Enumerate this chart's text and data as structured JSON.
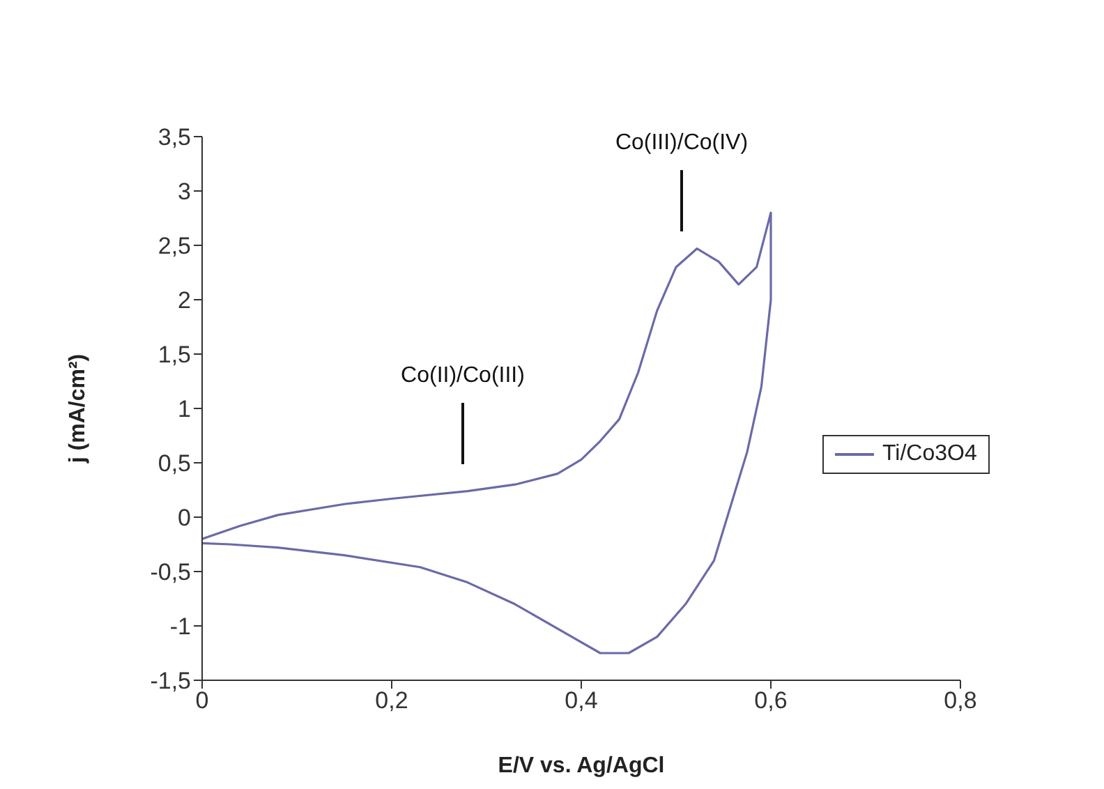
{
  "chart_data": {
    "type": "line",
    "xlabel": "E/V vs. Ag/AgCl",
    "ylabel": "j (mA/cm²)",
    "xlim": [
      0,
      0.8
    ],
    "xticks": [
      0,
      {
        "value": 0.2,
        "label": "0,2"
      },
      {
        "value": 0.4,
        "label": "0,4"
      },
      {
        "value": 0.6,
        "label": "0,6"
      },
      {
        "value": 0.8,
        "label": "0,8"
      }
    ],
    "ylim": [
      -1.5,
      3.5
    ],
    "yticks": [
      {
        "value": -1.5,
        "label": "-1,5"
      },
      -1,
      {
        "value": -0.5,
        "label": "-0,5"
      },
      0,
      {
        "value": 0.5,
        "label": "0,5"
      },
      1,
      {
        "value": 1.5,
        "label": "1,5"
      },
      2,
      {
        "value": 2.5,
        "label": "2,5"
      },
      3,
      {
        "value": 3.5,
        "label": "3,5"
      }
    ],
    "grid": false,
    "legend": "right",
    "marker": "none",
    "line_style": "solid",
    "series": [
      {
        "name": "Ti/Co3O4",
        "color": "#6a6aa8",
        "x": [
          0,
          0.04,
          0.08,
          0.15,
          0.2,
          0.28,
          0.33,
          0.375,
          0.4,
          0.42,
          0.44,
          0.46,
          0.48,
          0.5,
          0.522,
          0.545,
          0.566,
          0.585,
          0.6,
          0.6,
          0.59,
          0.575,
          0.554,
          0.54,
          0.51,
          0.48,
          0.45,
          0.42,
          0.39,
          0.33,
          0.28,
          0.23,
          0.15,
          0.08,
          0.03,
          0
        ],
        "values": [
          -0.2,
          -0.08,
          0.02,
          0.12,
          0.17,
          0.24,
          0.3,
          0.4,
          0.53,
          0.7,
          0.9,
          1.33,
          1.9,
          2.3,
          2.47,
          2.35,
          2.14,
          2.3,
          2.8,
          2.0,
          1.2,
          0.6,
          0,
          -0.4,
          -0.8,
          -1.1,
          -1.25,
          -1.25,
          -1.1,
          -0.8,
          -0.6,
          -0.46,
          -0.35,
          -0.28,
          -0.25,
          -0.24
        ]
      }
    ],
    "annotations": [
      "Co(II)/Co(III)",
      "Co(III)/Co(IV)"
    ]
  }
}
